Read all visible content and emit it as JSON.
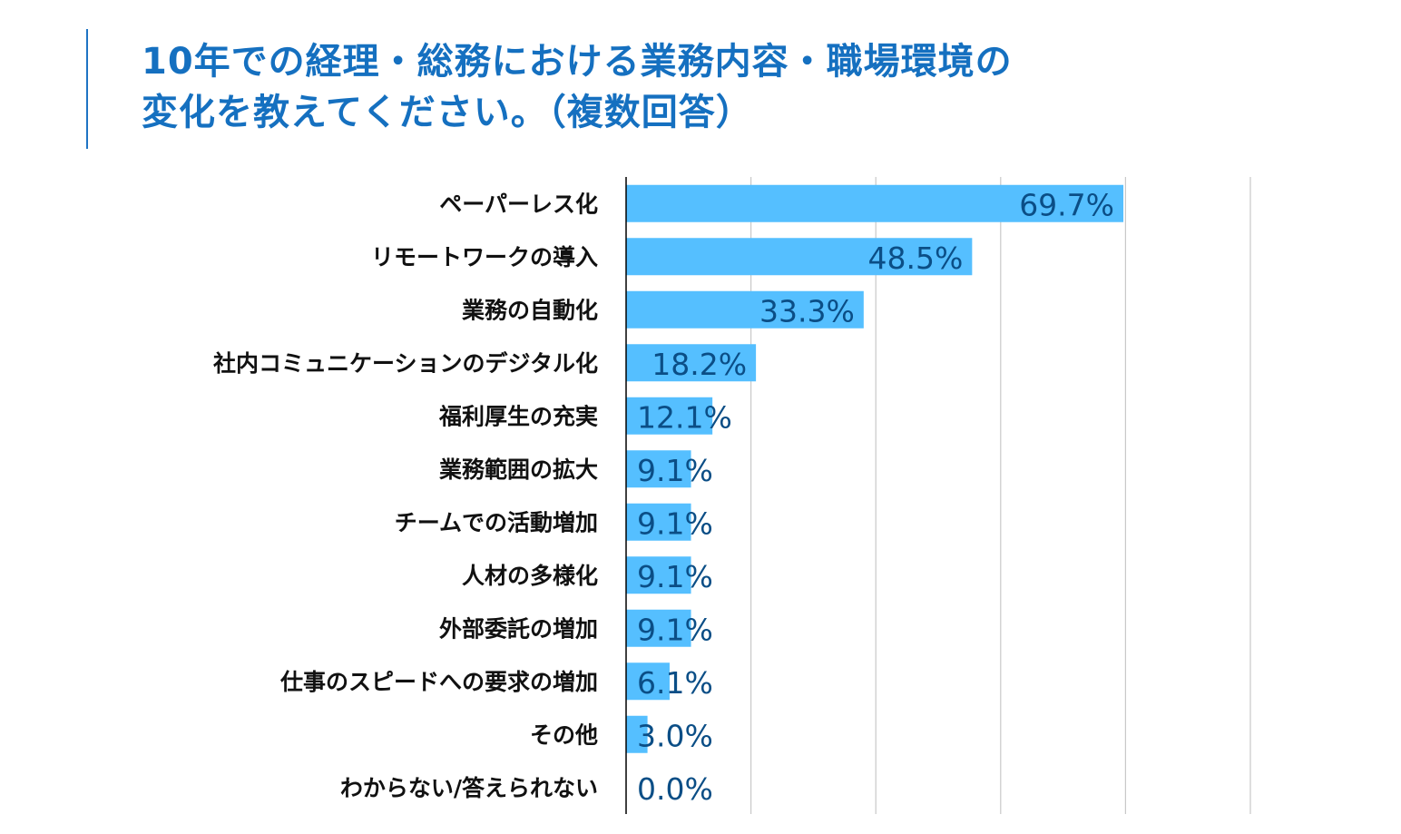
{
  "title": {
    "line1": "10年での経理・総務における業務内容・職場環境の",
    "line2": "変化を教えてください。（複数回答）"
  },
  "colors": {
    "title": "#1570c0",
    "bar": "#55bfff",
    "value_label": "#0b4e86",
    "category_label": "#111111",
    "gridline": "#c8c8c8",
    "axis": "#000000"
  },
  "chart_data": {
    "type": "bar",
    "orientation": "horizontal",
    "title": "10年での経理・総務における業務内容・職場環境の変化を教えてください。（複数回答）",
    "xlabel": "",
    "ylabel": "",
    "xlim": [
      0,
      87.5
    ],
    "gridline_values": [
      17.5,
      35,
      52.5,
      70,
      87.5
    ],
    "grid": true,
    "legend": "none",
    "categories": [
      "ペーパーレス化",
      "リモートワークの導入",
      "業務の自動化",
      "社内コミュニケーションのデジタル化",
      "福利厚生の充実",
      "業務範囲の拡大",
      "チームでの活動増加",
      "人材の多様化",
      "外部委託の増加",
      "仕事のスピードへの要求の増加",
      "その他",
      "わからない/答えられない"
    ],
    "values": [
      69.7,
      48.5,
      33.3,
      18.2,
      12.1,
      9.1,
      9.1,
      9.1,
      9.1,
      6.1,
      3.0,
      0.0
    ],
    "data_labels": [
      "69.7%",
      "48.5%",
      "33.3%",
      "18.2%",
      "12.1%",
      "9.1%",
      "9.1%",
      "9.1%",
      "9.1%",
      "6.1%",
      "3.0%",
      "0.0%"
    ]
  }
}
